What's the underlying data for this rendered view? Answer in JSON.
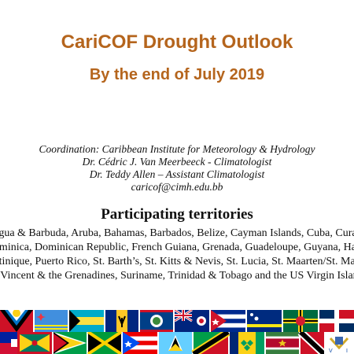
{
  "title": "CariCOF Drought Outlook",
  "subtitle": "By the end of July 2019",
  "credits": [
    "Coordination: Caribbean Institute for Meteorology & Hydrology",
    "Dr. Cédric J. Van Meerbeeck - Climatologist",
    "Dr. Teddy Allen – Assistant Climatologist",
    "caricof@cimh.edu.bb"
  ],
  "territories_heading": "Participating territories",
  "territories_lines": [
    "Antigua & Barbuda, Aruba, Bahamas, Barbados, Belize, Cayman Islands, Cuba, Curaçao,",
    "Dominica, Dominican Republic, French Guiana, Grenada, Guadeloupe, Guyana, Haïti,",
    "Martinique, Puerto Rico, St. Barth’s, St. Kitts & Nevis, St. Lucia, St. Maarten/St. Martin,",
    "St. Vincent & the Grenadines, Suriname, Trinidad & Tobago and the US Virgin Islands"
  ],
  "colors": {
    "title": "#b5651d",
    "text": "#111111"
  },
  "flags_row_1": [
    "antigua-flag",
    "aruba-flag",
    "bahamas-flag",
    "barbados-flag",
    "belize-flag",
    "cayman-flag",
    "cuba-flag",
    "curacao-flag",
    "dominica-flag",
    "dominican-republic-flag"
  ],
  "flags_row_2": [
    "haiti-flag",
    "grenada-flag",
    "guyana-flag",
    "jamaica-flag",
    "puerto-rico-flag",
    "st-lucia-flag",
    "st-kitts-flag",
    "st-vincent-flag",
    "suriname-flag",
    "trinidad-flag",
    "usvi-flag"
  ]
}
